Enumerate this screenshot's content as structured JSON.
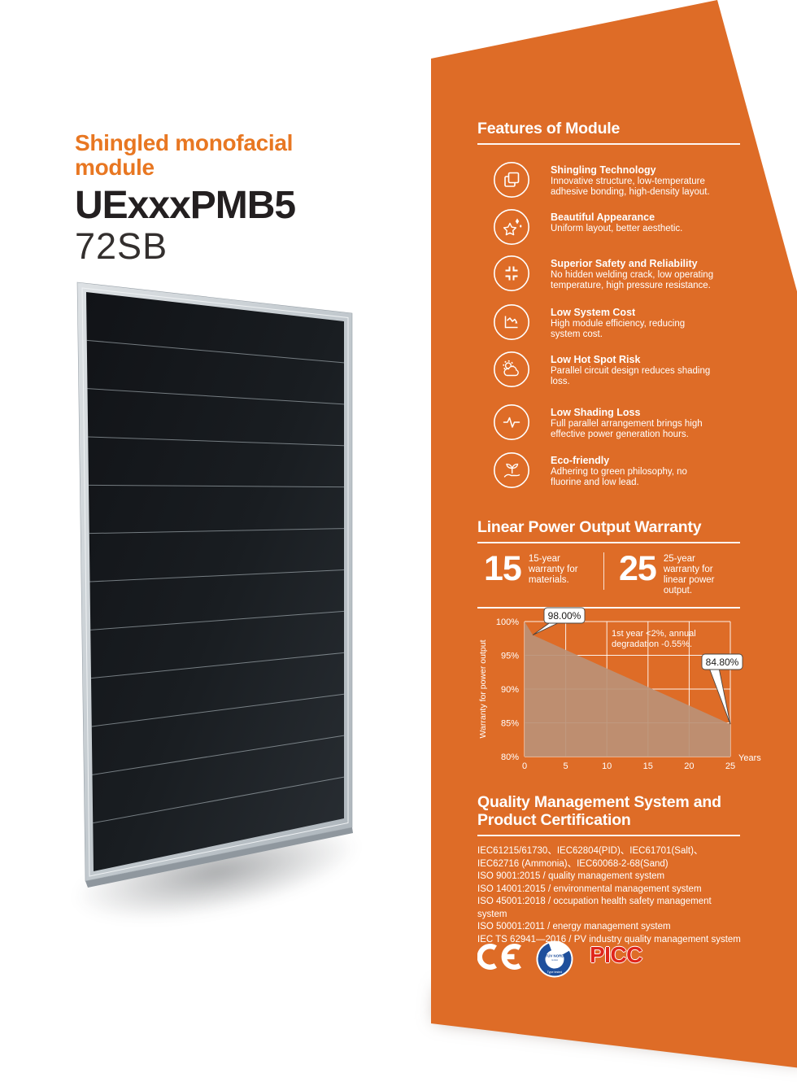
{
  "page": {
    "accent_orange": "#de6c27",
    "title_orange": "#e87722",
    "picc_red": "#e0261b",
    "tuv_blue": "#1e4f9c"
  },
  "hero": {
    "subtitle": "Shingled monofacial module",
    "model": "UExxxPMB5",
    "variant": "72SB"
  },
  "features": {
    "heading": "Features of Module",
    "items": [
      {
        "icon": "shingling-technology-icon",
        "title": "Shingling Technology",
        "desc_lines": [
          "Innovative structure, low-temperature",
          "adhesive bonding, high-density layout."
        ]
      },
      {
        "icon": "beautiful-appearance-icon",
        "title": "Beautiful Appearance",
        "desc_lines": [
          "Uniform layout, better aesthetic."
        ]
      },
      {
        "icon": "safety-reliability-icon",
        "title": "Superior Safety and Reliability",
        "desc_lines": [
          "No hidden welding crack, low operating",
          "temperature, high pressure resistance."
        ]
      },
      {
        "icon": "low-system-cost-icon",
        "title": "Low System Cost",
        "desc_lines": [
          "High module efficiency, reducing",
          "system cost."
        ]
      },
      {
        "icon": "low-hot-spot-risk-icon",
        "title": "Low Hot Spot Risk",
        "desc_lines": [
          "Parallel circuit design reduces shading",
          "loss."
        ]
      },
      {
        "icon": "low-shading-loss-icon",
        "title": "Low Shading Loss",
        "desc_lines": [
          "Full parallel arrangement brings high",
          "effective power generation hours."
        ]
      },
      {
        "icon": "eco-friendly-icon",
        "title": "Eco-friendly",
        "desc_lines": [
          "Adhering to green philosophy, no",
          "fluorine and low lead."
        ]
      }
    ]
  },
  "warranty": {
    "heading": "Linear Power Output Warranty",
    "items": [
      {
        "years": "15",
        "desc_lines": [
          "15-year",
          "warranty for",
          "materials."
        ]
      },
      {
        "years": "25",
        "desc_lines": [
          "25-year",
          "warranty for",
          "linear power",
          "output."
        ]
      }
    ]
  },
  "chart_data": {
    "type": "area",
    "title": "",
    "xlabel": "Years",
    "ylabel": "Warranty for power output",
    "xlim": [
      0,
      25
    ],
    "ylim": [
      80,
      100
    ],
    "x_ticks": [
      0,
      5,
      10,
      15,
      20,
      25
    ],
    "x_tick_labels": [
      "0",
      "5",
      "10",
      "15",
      "20",
      "25"
    ],
    "y_ticks": [
      80,
      85,
      90,
      95,
      100
    ],
    "y_tick_labels": [
      "80%",
      "85%",
      "90%",
      "95%",
      "100%"
    ],
    "grid": true,
    "area_color": "#bb9176",
    "series": [
      {
        "name": "warranty_for_power_output",
        "points": [
          [
            0,
            100
          ],
          [
            1,
            98
          ],
          [
            25,
            84.8
          ]
        ]
      }
    ],
    "callouts": [
      {
        "label": "98.00%",
        "x": 1,
        "y": 98
      },
      {
        "label": "84.80%",
        "x": 25,
        "y": 84.8
      }
    ],
    "annotation": [
      "1st year <2%, annual",
      "degradation -0.55%."
    ]
  },
  "quality": {
    "heading": "Quality Management System and Product Certification",
    "lines": [
      "IEC61215/61730、IEC62804(PID)、IEC61701(Salt)、",
      "IEC62716 (Ammonia)、IEC60068-2-68(Sand)",
      "ISO 9001:2015 / quality management system",
      "ISO 14001:2015 / environmental management system",
      "ISO 45001:2018 / occupation health safety management system",
      "ISO 50001:2011 / energy management system",
      "IEC TS 62941—2016 / PV industry quality management system"
    ]
  },
  "logos": {
    "ce": "CE",
    "tuv_top": "TÜV NORD",
    "tuv_bottom": "Type tested",
    "picc": "PICC"
  }
}
